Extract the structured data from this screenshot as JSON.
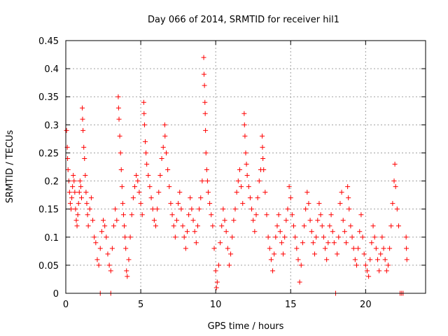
{
  "chart_data": {
    "type": "scatter",
    "title": "Day 066 of 2014, SRMTID for receiver hil1",
    "xlabel": "GPS time / hours",
    "ylabel": "SRMTID / TECUs",
    "xlim": [
      0,
      24
    ],
    "ylim": [
      0,
      0.45
    ],
    "xticks": [
      0,
      5,
      10,
      15,
      20
    ],
    "xtick_labels": [
      "0",
      "5",
      "10",
      "15",
      "20"
    ],
    "yticks": [
      0,
      0.05,
      0.1,
      0.15,
      0.2,
      0.25,
      0.3,
      0.35,
      0.4,
      0.45
    ],
    "ytick_labels": [
      "0",
      "0.05",
      "0.1",
      "0.15",
      "0.2",
      "0.25",
      "0.3",
      "0.35",
      "0.4",
      "0.45"
    ],
    "grid": true,
    "marker": "+",
    "series": [
      {
        "name": "hil1",
        "color": "#ff0000",
        "points": [
          [
            0.05,
            0.29
          ],
          [
            0.1,
            0.26
          ],
          [
            0.12,
            0.24
          ],
          [
            0.15,
            0.22
          ],
          [
            0.2,
            0.2
          ],
          [
            0.25,
            0.18
          ],
          [
            0.3,
            0.16
          ],
          [
            0.35,
            0.15
          ],
          [
            0.4,
            0.17
          ],
          [
            0.45,
            0.19
          ],
          [
            0.5,
            0.21
          ],
          [
            0.55,
            0.2
          ],
          [
            0.6,
            0.18
          ],
          [
            0.65,
            0.15
          ],
          [
            0.7,
            0.13
          ],
          [
            0.75,
            0.12
          ],
          [
            0.8,
            0.14
          ],
          [
            0.85,
            0.16
          ],
          [
            0.9,
            0.18
          ],
          [
            0.95,
            0.2
          ],
          [
            1.0,
            0.19
          ],
          [
            1.05,
            0.17
          ],
          [
            1.1,
            0.33
          ],
          [
            1.12,
            0.31
          ],
          [
            1.15,
            0.29
          ],
          [
            1.2,
            0.26
          ],
          [
            1.25,
            0.24
          ],
          [
            1.3,
            0.21
          ],
          [
            1.35,
            0.18
          ],
          [
            1.4,
            0.16
          ],
          [
            1.45,
            0.14
          ],
          [
            1.5,
            0.12
          ],
          [
            1.6,
            0.15
          ],
          [
            1.7,
            0.17
          ],
          [
            1.8,
            0.13
          ],
          [
            1.9,
            0.1
          ],
          [
            2.0,
            0.09
          ],
          [
            2.1,
            0.06
          ],
          [
            2.2,
            0.05
          ],
          [
            2.3,
            0.08
          ],
          [
            2.4,
            0.11
          ],
          [
            2.5,
            0.13
          ],
          [
            2.6,
            0.12
          ],
          [
            2.7,
            0.1
          ],
          [
            2.8,
            0.07
          ],
          [
            2.9,
            0.05
          ],
          [
            3.0,
            0.04
          ],
          [
            3.1,
            0.08
          ],
          [
            3.2,
            0.12
          ],
          [
            3.3,
            0.15
          ],
          [
            3.4,
            0.13
          ],
          [
            3.5,
            0.35
          ],
          [
            3.52,
            0.33
          ],
          [
            3.55,
            0.31
          ],
          [
            3.6,
            0.28
          ],
          [
            3.65,
            0.25
          ],
          [
            3.7,
            0.22
          ],
          [
            3.75,
            0.19
          ],
          [
            3.8,
            0.16
          ],
          [
            3.85,
            0.14
          ],
          [
            3.9,
            0.12
          ],
          [
            3.95,
            0.1
          ],
          [
            4.0,
            0.08
          ],
          [
            4.05,
            0.04
          ],
          [
            4.1,
            0.03
          ],
          [
            4.2,
            0.06
          ],
          [
            4.3,
            0.1
          ],
          [
            4.4,
            0.14
          ],
          [
            4.5,
            0.17
          ],
          [
            4.6,
            0.19
          ],
          [
            4.7,
            0.21
          ],
          [
            4.8,
            0.2
          ],
          [
            4.9,
            0.18
          ],
          [
            5.0,
            0.16
          ],
          [
            5.1,
            0.14
          ],
          [
            5.2,
            0.34
          ],
          [
            5.22,
            0.32
          ],
          [
            5.25,
            0.3
          ],
          [
            5.3,
            0.27
          ],
          [
            5.35,
            0.25
          ],
          [
            5.4,
            0.23
          ],
          [
            5.5,
            0.21
          ],
          [
            5.6,
            0.19
          ],
          [
            5.7,
            0.17
          ],
          [
            5.8,
            0.15
          ],
          [
            5.9,
            0.13
          ],
          [
            6.0,
            0.12
          ],
          [
            6.1,
            0.15
          ],
          [
            6.2,
            0.18
          ],
          [
            6.3,
            0.21
          ],
          [
            6.4,
            0.24
          ],
          [
            6.5,
            0.26
          ],
          [
            6.6,
            0.3
          ],
          [
            6.62,
            0.28
          ],
          [
            6.7,
            0.25
          ],
          [
            6.8,
            0.22
          ],
          [
            6.9,
            0.19
          ],
          [
            7.0,
            0.16
          ],
          [
            7.1,
            0.14
          ],
          [
            7.2,
            0.12
          ],
          [
            7.3,
            0.1
          ],
          [
            7.4,
            0.13
          ],
          [
            7.5,
            0.16
          ],
          [
            7.6,
            0.18
          ],
          [
            7.7,
            0.15
          ],
          [
            7.8,
            0.12
          ],
          [
            7.9,
            0.1
          ],
          [
            8.0,
            0.08
          ],
          [
            8.1,
            0.11
          ],
          [
            8.2,
            0.14
          ],
          [
            8.3,
            0.17
          ],
          [
            8.4,
            0.15
          ],
          [
            8.5,
            0.13
          ],
          [
            8.6,
            0.11
          ],
          [
            8.7,
            0.09
          ],
          [
            8.8,
            0.12
          ],
          [
            8.9,
            0.15
          ],
          [
            9.0,
            0.17
          ],
          [
            9.1,
            0.2
          ],
          [
            9.2,
            0.42
          ],
          [
            9.22,
            0.39
          ],
          [
            9.25,
            0.37
          ],
          [
            9.28,
            0.34
          ],
          [
            9.3,
            0.32
          ],
          [
            9.32,
            0.29
          ],
          [
            9.35,
            0.25
          ],
          [
            9.4,
            0.22
          ],
          [
            9.45,
            0.2
          ],
          [
            9.5,
            0.18
          ],
          [
            9.6,
            0.16
          ],
          [
            9.7,
            0.14
          ],
          [
            9.8,
            0.12
          ],
          [
            9.9,
            0.08
          ],
          [
            10.0,
            0.04
          ],
          [
            10.05,
            0.01
          ],
          [
            10.1,
            0.02
          ],
          [
            10.2,
            0.05
          ],
          [
            10.3,
            0.09
          ],
          [
            10.4,
            0.12
          ],
          [
            10.5,
            0.15
          ],
          [
            10.6,
            0.13
          ],
          [
            10.7,
            0.11
          ],
          [
            10.8,
            0.08
          ],
          [
            10.9,
            0.05
          ],
          [
            11.0,
            0.07
          ],
          [
            11.1,
            0.1
          ],
          [
            11.2,
            0.13
          ],
          [
            11.3,
            0.15
          ],
          [
            11.4,
            0.18
          ],
          [
            11.5,
            0.2
          ],
          [
            11.6,
            0.22
          ],
          [
            11.7,
            0.19
          ],
          [
            11.8,
            0.16
          ],
          [
            11.9,
            0.32
          ],
          [
            11.92,
            0.3
          ],
          [
            11.95,
            0.28
          ],
          [
            12.0,
            0.25
          ],
          [
            12.05,
            0.23
          ],
          [
            12.1,
            0.21
          ],
          [
            12.2,
            0.19
          ],
          [
            12.3,
            0.17
          ],
          [
            12.4,
            0.15
          ],
          [
            12.5,
            0.13
          ],
          [
            12.6,
            0.11
          ],
          [
            12.7,
            0.14
          ],
          [
            12.8,
            0.17
          ],
          [
            12.9,
            0.2
          ],
          [
            13.0,
            0.22
          ],
          [
            13.1,
            0.28
          ],
          [
            13.12,
            0.26
          ],
          [
            13.15,
            0.24
          ],
          [
            13.2,
            0.22
          ],
          [
            13.3,
            0.18
          ],
          [
            13.4,
            0.14
          ],
          [
            13.5,
            0.1
          ],
          [
            13.6,
            0.08
          ],
          [
            13.7,
            0.06
          ],
          [
            13.8,
            0.04
          ],
          [
            13.9,
            0.07
          ],
          [
            14.0,
            0.1
          ],
          [
            14.1,
            0.12
          ],
          [
            14.2,
            0.14
          ],
          [
            14.3,
            0.11
          ],
          [
            14.4,
            0.09
          ],
          [
            14.5,
            0.07
          ],
          [
            14.6,
            0.1
          ],
          [
            14.7,
            0.13
          ],
          [
            14.8,
            0.15
          ],
          [
            14.9,
            0.19
          ],
          [
            15.0,
            0.17
          ],
          [
            15.1,
            0.14
          ],
          [
            15.2,
            0.12
          ],
          [
            15.3,
            0.1
          ],
          [
            15.4,
            0.08
          ],
          [
            15.5,
            0.06
          ],
          [
            15.6,
            0.02
          ],
          [
            15.7,
            0.05
          ],
          [
            15.8,
            0.09
          ],
          [
            15.9,
            0.12
          ],
          [
            16.0,
            0.15
          ],
          [
            16.1,
            0.18
          ],
          [
            16.2,
            0.16
          ],
          [
            16.3,
            0.13
          ],
          [
            16.4,
            0.11
          ],
          [
            16.5,
            0.09
          ],
          [
            16.6,
            0.07
          ],
          [
            16.7,
            0.1
          ],
          [
            16.8,
            0.13
          ],
          [
            16.9,
            0.16
          ],
          [
            17.0,
            0.14
          ],
          [
            17.1,
            0.12
          ],
          [
            17.2,
            0.1
          ],
          [
            17.3,
            0.08
          ],
          [
            17.4,
            0.06
          ],
          [
            17.5,
            0.09
          ],
          [
            17.6,
            0.12
          ],
          [
            17.7,
            0.14
          ],
          [
            17.8,
            0.11
          ],
          [
            17.9,
            0.09
          ],
          [
            18.0,
            0.0
          ],
          [
            18.1,
            0.07
          ],
          [
            18.2,
            0.1
          ],
          [
            18.3,
            0.16
          ],
          [
            18.4,
            0.18
          ],
          [
            18.5,
            0.13
          ],
          [
            18.6,
            0.11
          ],
          [
            18.7,
            0.09
          ],
          [
            18.8,
            0.19
          ],
          [
            18.85,
            0.17
          ],
          [
            18.9,
            0.15
          ],
          [
            19.0,
            0.12
          ],
          [
            19.1,
            0.1
          ],
          [
            19.2,
            0.08
          ],
          [
            19.3,
            0.06
          ],
          [
            19.4,
            0.05
          ],
          [
            19.5,
            0.08
          ],
          [
            19.6,
            0.11
          ],
          [
            19.7,
            0.14
          ],
          [
            19.8,
            0.1
          ],
          [
            19.9,
            0.07
          ],
          [
            20.0,
            0.05
          ],
          [
            20.1,
            0.04
          ],
          [
            20.2,
            0.03
          ],
          [
            20.3,
            0.06
          ],
          [
            20.4,
            0.09
          ],
          [
            20.5,
            0.12
          ],
          [
            20.6,
            0.1
          ],
          [
            20.7,
            0.08
          ],
          [
            20.8,
            0.06
          ],
          [
            20.9,
            0.04
          ],
          [
            21.0,
            0.07
          ],
          [
            21.1,
            0.1
          ],
          [
            21.2,
            0.08
          ],
          [
            21.3,
            0.06
          ],
          [
            21.4,
            0.04
          ],
          [
            21.5,
            0.05
          ],
          [
            21.6,
            0.08
          ],
          [
            21.7,
            0.12
          ],
          [
            21.8,
            0.16
          ],
          [
            21.9,
            0.2
          ],
          [
            21.95,
            0.23
          ],
          [
            22.0,
            0.19
          ],
          [
            22.1,
            0.15
          ],
          [
            22.2,
            0.12
          ],
          [
            22.3,
            0.0
          ],
          [
            22.4,
            0.0
          ],
          [
            22.5,
            0.0
          ],
          [
            22.7,
            0.1
          ],
          [
            22.72,
            0.08
          ],
          [
            22.75,
            0.06
          ],
          [
            2.3,
            0.0
          ],
          [
            3.0,
            0.0
          ]
        ]
      }
    ]
  }
}
